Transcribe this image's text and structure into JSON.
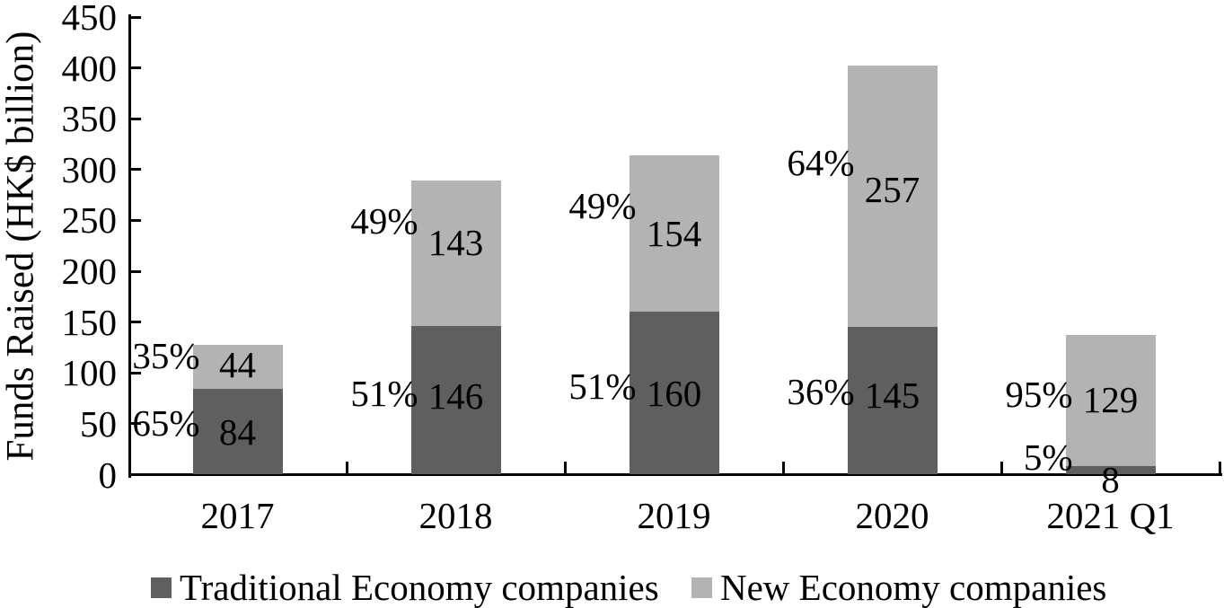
{
  "chart_data": {
    "type": "bar",
    "stacked": true,
    "title": "",
    "xlabel": "",
    "ylabel": "Funds Raised (HK$ billion)",
    "categories": [
      "2017",
      "2018",
      "2019",
      "2020",
      "2021 Q1"
    ],
    "series": [
      {
        "name": "Traditional Economy companies",
        "color": "#5f5f5f",
        "values": [
          84,
          146,
          160,
          145,
          8
        ],
        "pct_labels": [
          "65%",
          "51%",
          "51%",
          "36%",
          "5%"
        ]
      },
      {
        "name": "New Economy companies",
        "color": "#b3b3b3",
        "values": [
          44,
          143,
          154,
          257,
          129
        ],
        "pct_labels": [
          "35%",
          "49%",
          "49%",
          "64%",
          "95%"
        ]
      }
    ],
    "totals": [
      128,
      289,
      314,
      402,
      137
    ],
    "ylim": [
      0,
      450
    ],
    "yticks": [
      0,
      50,
      100,
      150,
      200,
      250,
      300,
      350,
      400,
      450
    ],
    "grid": false,
    "legend_position": "bottom",
    "axis_color": "#000000",
    "label_color": "#000000"
  }
}
